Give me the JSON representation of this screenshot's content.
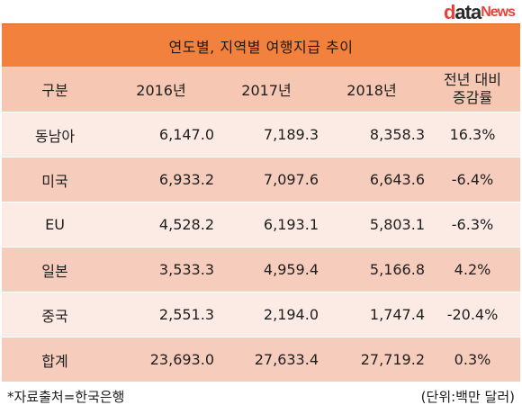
{
  "brand": {
    "logo_d": "d",
    "logo_ata": "ata",
    "logo_news": "News"
  },
  "title": "연도별, 지역별 여행지급 추이",
  "header": {
    "category": "구분",
    "y2016": "2016년",
    "y2017": "2017년",
    "y2018": "2018년",
    "change_line1": "전년 대비",
    "change_line2": "증감률"
  },
  "rows": [
    {
      "region": "동남아",
      "y2016": "6,147.0",
      "y2017": "7,189.3",
      "y2018": "8,358.3",
      "change": "16.3%"
    },
    {
      "region": "미국",
      "y2016": "6,933.2",
      "y2017": "7,097.6",
      "y2018": "6,643.6",
      "change": "-6.4%"
    },
    {
      "region": "EU",
      "y2016": "4,528.2",
      "y2017": "6,193.1",
      "y2018": "5,803.1",
      "change": "-6.3%"
    },
    {
      "region": "일본",
      "y2016": "3,533.3",
      "y2017": "4,959.4",
      "y2018": "5,166.8",
      "change": "4.2%"
    },
    {
      "region": "중국",
      "y2016": "2,551.3",
      "y2017": "2,194.0",
      "y2018": "1,747.4",
      "change": "-20.4%"
    },
    {
      "region": "합계",
      "y2016": "23,693.0",
      "y2017": "27,633.4",
      "y2018": "27,719.2",
      "change": "0.3%"
    }
  ],
  "footer": {
    "source": "*자료출처=한국은행",
    "unit": "(단위:백만 달러)"
  },
  "colors": {
    "title_bar": "#f3813e",
    "header_bg": "#f6c8b4",
    "row_light": "#fcebe4",
    "row_dark": "#f6cdbd",
    "logo_accent": "#e8413a"
  }
}
